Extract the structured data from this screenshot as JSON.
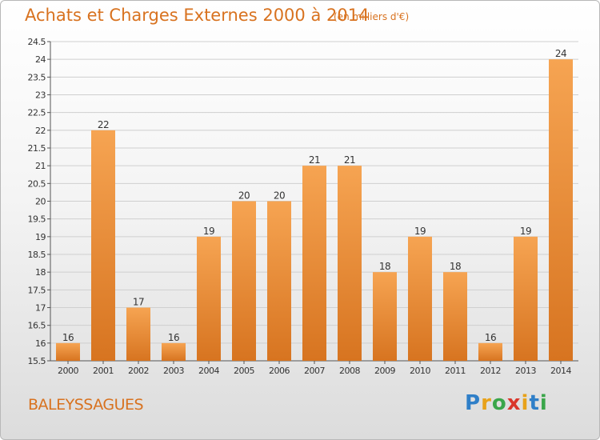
{
  "header": {
    "title": "Achats et Charges Externes 2000 à 2014",
    "subtitle": "(en milliers d'€)"
  },
  "footer": {
    "commune": "BALEYSSAGUES",
    "logo": {
      "letters": [
        "P",
        "r",
        "o",
        "x",
        "i",
        "t",
        "i"
      ],
      "colors": [
        "#2f7fc8",
        "#e8a21a",
        "#3aa64a",
        "#d9372b",
        "#e8a21a",
        "#2f7fc8",
        "#3aa64a"
      ]
    }
  },
  "colors": {
    "bar_light": "#f6a452",
    "bar_dark": "#d77420",
    "text": "#d8721f",
    "axis_text": "#333333",
    "grid": "#cfcfcf"
  },
  "chart_data": {
    "type": "bar",
    "categories": [
      "2000",
      "2001",
      "2002",
      "2003",
      "2004",
      "2005",
      "2006",
      "2007",
      "2008",
      "2009",
      "2010",
      "2011",
      "2012",
      "2013",
      "2014"
    ],
    "values": [
      16,
      22,
      17,
      16,
      19,
      20,
      20,
      21,
      21,
      18,
      19,
      18,
      16,
      19,
      24
    ],
    "data_labels": [
      "16",
      "22",
      "17",
      "16",
      "19",
      "20",
      "20",
      "21",
      "21",
      "18",
      "19",
      "18",
      "16",
      "19",
      "24"
    ],
    "ylim": [
      15.5,
      24.5
    ],
    "yticks": [
      "15.5",
      "16",
      "16.5",
      "17",
      "17.5",
      "18",
      "18.5",
      "19",
      "19.5",
      "20",
      "20.5",
      "21",
      "21.5",
      "22",
      "22.5",
      "23",
      "23.5",
      "24",
      "24.5"
    ],
    "grid": true,
    "xlabel": "",
    "ylabel": ""
  }
}
